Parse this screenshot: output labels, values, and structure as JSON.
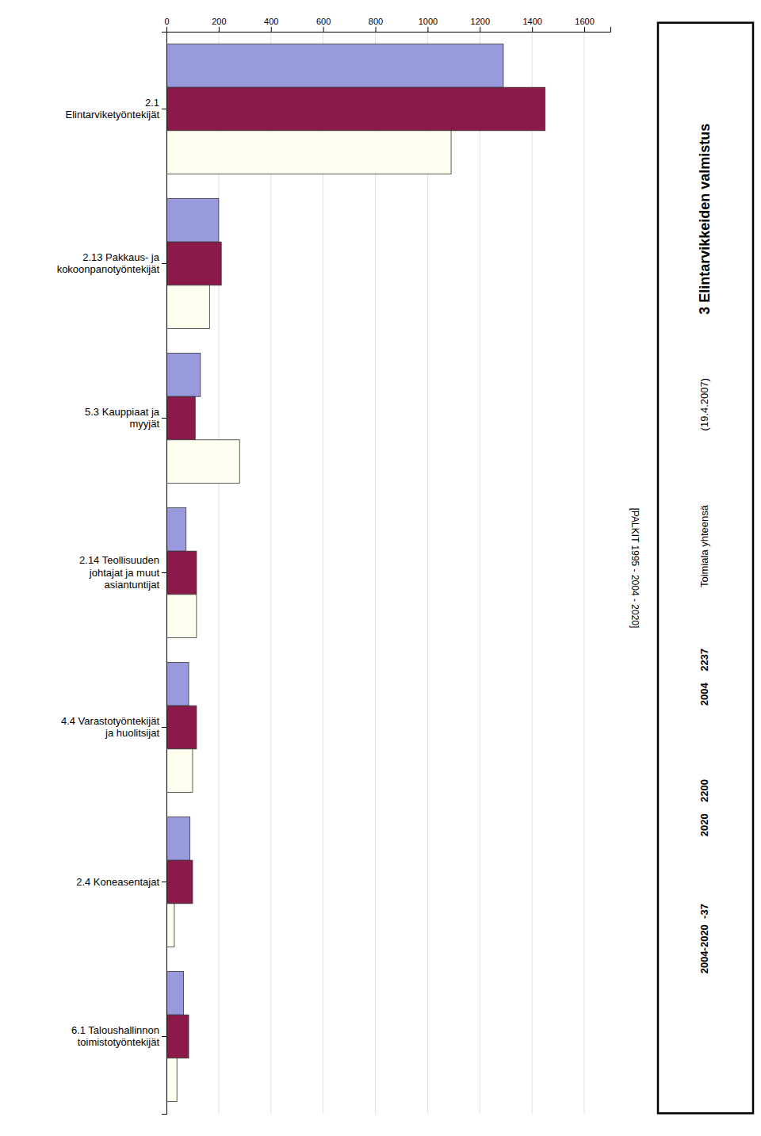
{
  "chart_data": {
    "type": "bar",
    "orientation": "horizontal",
    "title": "3 Elintarvikkeiden valmistus",
    "annotations": [
      "[PALKIT 1995 - 2004 - 2020]",
      "(19.4.2007)",
      "Toimiala yhteensä",
      "2004    2237",
      "2020    2200",
      "2004-2020  -37"
    ],
    "categories": [
      "2.1\nElintarviketyöntekijät",
      "2.13 Pakkaus- ja\nkokoonpanotyöntekijät",
      "5.3 Kauppiaat ja\nmyyjät",
      "2.14 Teollisuuden\njohtajat ja muut\nasiantuntijat",
      "4.4 Varastotyöntekijät\nja huolitsijat",
      "2.4 Koneasentajat",
      "6.1 Taloushallinnon\ntoimistotyöntekijät"
    ],
    "series": [
      {
        "color": "#9999DD",
        "values": [
          1290,
          200,
          130,
          75,
          85,
          90,
          65
        ]
      },
      {
        "color": "#8B1A4A",
        "values": [
          1450,
          210,
          110,
          115,
          115,
          100,
          85
        ]
      },
      {
        "color": "#FFFFF0",
        "values": [
          1090,
          165,
          280,
          115,
          100,
          30,
          40
        ]
      }
    ],
    "xlim": [
      0,
      1700
    ],
    "xticks": [
      0,
      200,
      400,
      600,
      800,
      1000,
      1200,
      1400,
      1600
    ],
    "grid": true
  }
}
